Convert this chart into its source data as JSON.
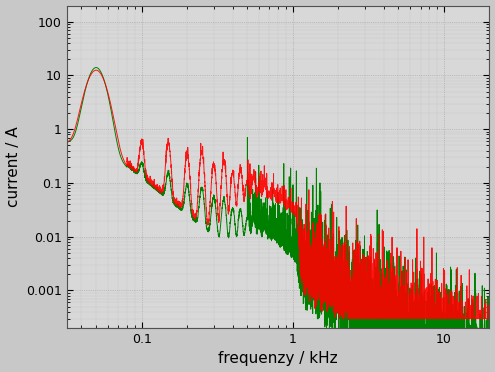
{
  "xlabel": "frequenzy / kHz",
  "ylabel": "current / A",
  "xlim": [
    0.032,
    20
  ],
  "ylim": [
    0.0002,
    200
  ],
  "red_color": "#ff0000",
  "green_color": "#008000",
  "fig_facecolor": "#c8c8c8",
  "axes_facecolor": "#d8d8d8",
  "grid_color": "#b0b0b0",
  "xlabel_fontsize": 11,
  "ylabel_fontsize": 11,
  "tick_fontsize": 9,
  "linewidth": 0.7
}
